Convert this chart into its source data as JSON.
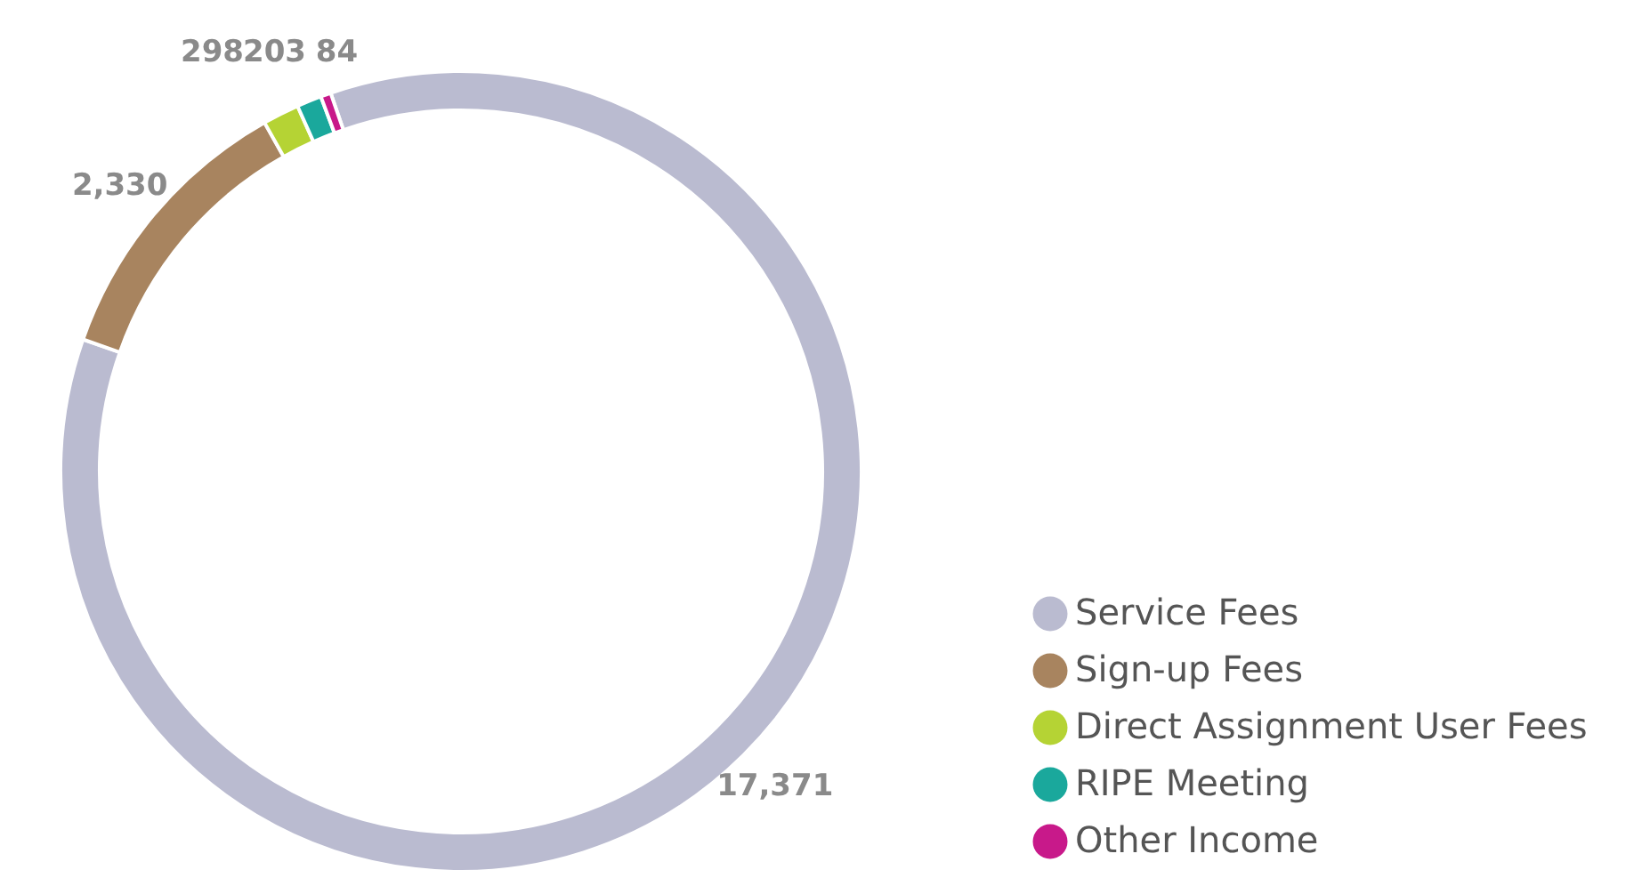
{
  "chart_data": {
    "type": "donut",
    "categories": [
      "Service Fees",
      "Sign-up Fees",
      "Direct Assignment User Fees",
      "RIPE Meeting",
      "Other Income"
    ],
    "values": [
      17371,
      2330,
      298,
      203,
      84
    ],
    "colors": [
      "#babbd0",
      "#a8845f",
      "#b5d334",
      "#1aa89c",
      "#c8198a"
    ],
    "value_labels": [
      "17,371",
      "2,330",
      "298",
      "203",
      "84"
    ],
    "data_labels": true,
    "legend": "bottom right"
  }
}
